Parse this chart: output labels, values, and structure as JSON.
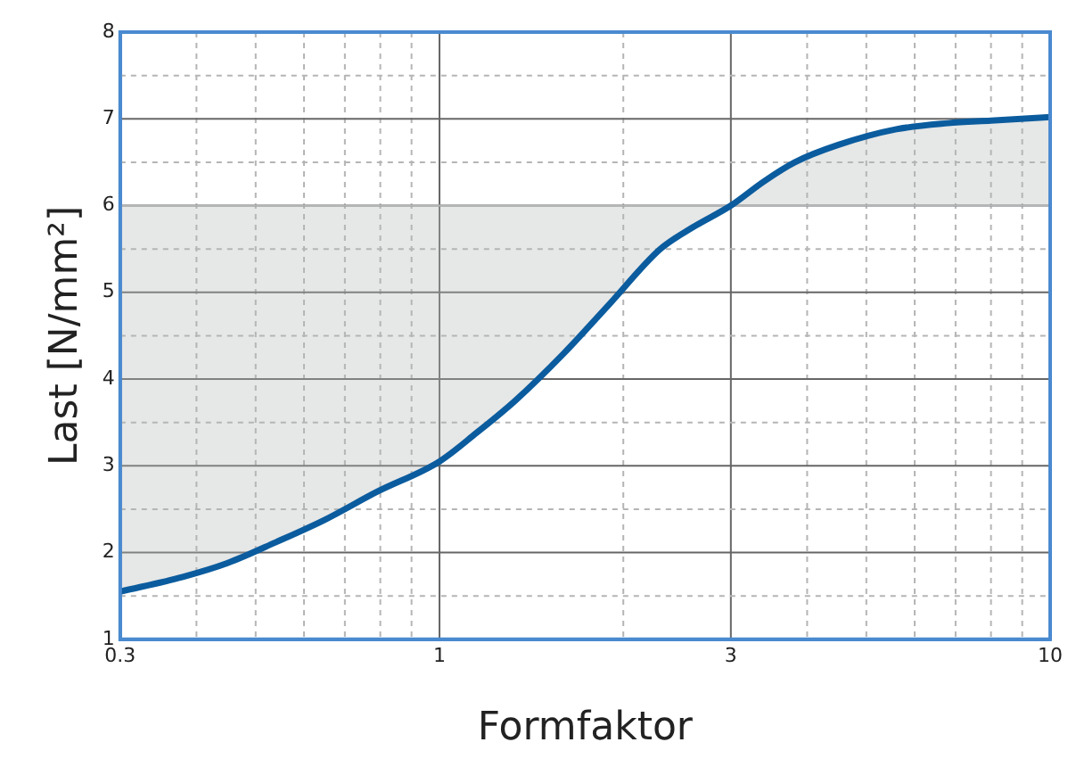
{
  "chart_data": {
    "type": "line",
    "xlabel": "Formfaktor",
    "ylabel": "Last [N/mm²]",
    "log": "x",
    "x": [
      0.3,
      0.38,
      0.45,
      0.54,
      0.65,
      0.79,
      1,
      1.15,
      1.33,
      1.6,
      1.89,
      2.3,
      2.6,
      3,
      3.4,
      3.82,
      4.5,
      5.6,
      6.8,
      8,
      10
    ],
    "series": [
      {
        "color": "#0b5c9e",
        "values": [
          1.55,
          1.72,
          1.88,
          2.12,
          2.38,
          2.7,
          3.05,
          3.38,
          3.75,
          4.3,
          4.85,
          5.5,
          5.75,
          6.0,
          6.28,
          6.5,
          6.7,
          6.88,
          6.95,
          6.98,
          7.02
        ]
      }
    ],
    "xlim": [
      0.3,
      10
    ],
    "xticks": [
      0.3,
      {
        "value": 0.4,
        "label": null
      },
      {
        "value": 0.5,
        "label": null
      },
      {
        "value": 0.6,
        "label": null
      },
      {
        "value": 0.7,
        "label": null
      },
      {
        "value": 0.8,
        "label": null
      },
      {
        "value": 0.9,
        "label": null
      },
      1,
      {
        "value": 2,
        "label": null
      },
      3,
      {
        "value": 4,
        "label": null
      },
      {
        "value": 5,
        "label": null
      },
      {
        "value": 6,
        "label": null
      },
      {
        "value": 7,
        "label": null
      },
      {
        "value": 8,
        "label": null
      },
      {
        "value": 9,
        "label": null
      },
      10
    ],
    "ylim": [
      1,
      8
    ],
    "yticks": [
      1,
      {
        "value": 1.5,
        "label": null
      },
      2,
      {
        "value": 2.5,
        "label": null
      },
      3,
      {
        "value": 3.5,
        "label": null
      },
      4,
      {
        "value": 4.5,
        "label": null
      },
      5,
      {
        "value": 5.5,
        "label": null
      },
      6,
      {
        "value": 6.5,
        "label": null
      },
      7,
      {
        "value": 7.5,
        "label": null
      },
      8
    ],
    "ref_lines": [
      {
        "axis": "y",
        "value": 6,
        "color": "#b4b6b8"
      }
    ],
    "grid": true,
    "marker": "none",
    "line_style": "solid"
  }
}
